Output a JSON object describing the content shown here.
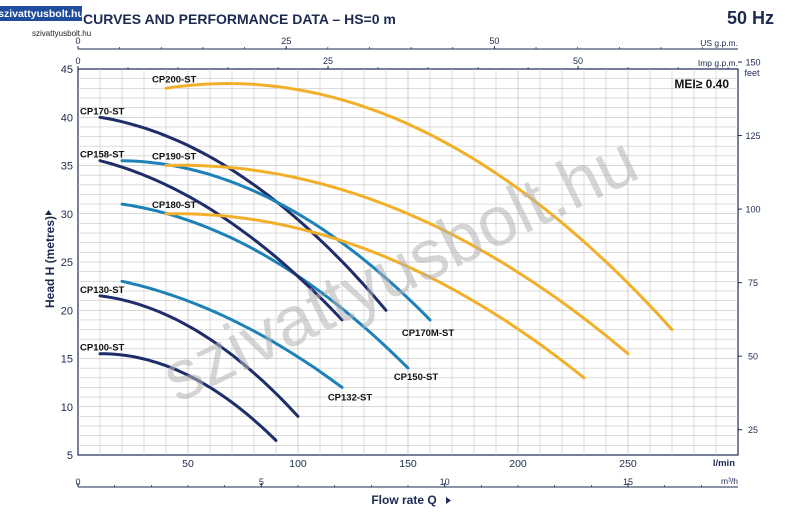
{
  "header": {
    "title": "CURVES AND PERFORMANCE DATA  –  HS=0 m",
    "frequency": "50 Hz",
    "site_badge": "szivattyusbolt.hu",
    "site_url": "szivattyusbolt.hu",
    "mei": "MEI≥ 0.40"
  },
  "watermark": "szivattyusbolt.hu",
  "colors": {
    "navy": "#1f2d6a",
    "blue": "#1e82b9",
    "orange": "#f2b02a",
    "axis": "#1c2a52",
    "grid": "#c8c8c8",
    "watermark": "#b3b3b3"
  },
  "chart_data": {
    "type": "line",
    "xlabel": "Flow rate Q",
    "ylabel": "Head H (metres)",
    "x_unit": "l/min",
    "xlim": [
      0,
      300
    ],
    "ylim": [
      5,
      45
    ],
    "x_ticks": [
      "50",
      "100",
      "150",
      "200",
      "250"
    ],
    "x_tick_values": [
      50,
      100,
      150,
      200,
      250
    ],
    "y_ticks": [
      "5",
      "10",
      "15",
      "20",
      "25",
      "30",
      "35",
      "40",
      "45"
    ],
    "y_tick_values": [
      5,
      10,
      15,
      20,
      25,
      30,
      35,
      40,
      45
    ],
    "grid": true,
    "secondary_axes": {
      "top_us": {
        "label": "US g.p.m.",
        "ticks": [
          "0",
          "25",
          "50"
        ],
        "values": [
          0,
          25,
          50
        ],
        "per_lmin": 0.26417
      },
      "top_imp": {
        "label": "Imp g.p.m.",
        "ticks": [
          "0",
          "25",
          "50"
        ],
        "values": [
          0,
          25,
          50
        ],
        "per_lmin": 0.21997
      },
      "bottom_m3h": {
        "label": "m³/h",
        "ticks": [
          "0",
          "5",
          "10",
          "15"
        ],
        "values": [
          0,
          5,
          10,
          15
        ],
        "per_lmin": 0.06
      },
      "right_feet": {
        "label": "feet",
        "ticks": [
          "25",
          "50",
          "75",
          "100",
          "125",
          "150"
        ],
        "values": [
          25,
          50,
          75,
          100,
          125,
          150
        ],
        "per_m": 3.2808
      }
    },
    "series": [
      {
        "name": "CP100-ST",
        "color": "navy",
        "x": [
          10,
          60,
          90
        ],
        "y": [
          15.5,
          12.0,
          6.5
        ]
      },
      {
        "name": "CP130-ST",
        "color": "navy",
        "x": [
          10,
          60,
          100
        ],
        "y": [
          21.5,
          17.0,
          9.0
        ]
      },
      {
        "name": "CP132-ST",
        "color": "blue",
        "x": [
          20,
          70,
          120
        ],
        "y": [
          23.0,
          19.0,
          12.0
        ]
      },
      {
        "name": "CP150-ST",
        "color": "blue",
        "x": [
          20,
          90,
          150
        ],
        "y": [
          31.0,
          25.0,
          14.0
        ]
      },
      {
        "name": "CP158-ST",
        "color": "navy",
        "x": [
          10,
          70,
          120
        ],
        "y": [
          35.5,
          29.0,
          19.0
        ]
      },
      {
        "name": "CP170-ST",
        "color": "navy",
        "x": [
          10,
          80,
          140
        ],
        "y": [
          40.0,
          33.0,
          20.0
        ]
      },
      {
        "name": "CP170M-ST",
        "color": "blue",
        "x": [
          20,
          100,
          160
        ],
        "y": [
          35.5,
          30.0,
          19.0
        ]
      },
      {
        "name": "CP180-ST",
        "color": "orange",
        "x": [
          40,
          140,
          230
        ],
        "y": [
          30.0,
          25.5,
          13.0
        ]
      },
      {
        "name": "CP190-ST",
        "color": "orange",
        "x": [
          40,
          150,
          250
        ],
        "y": [
          35.0,
          30.0,
          15.5
        ]
      },
      {
        "name": "CP200-ST",
        "color": "orange",
        "x": [
          40,
          170,
          270
        ],
        "y": [
          43.0,
          37.0,
          18.0
        ]
      }
    ]
  }
}
